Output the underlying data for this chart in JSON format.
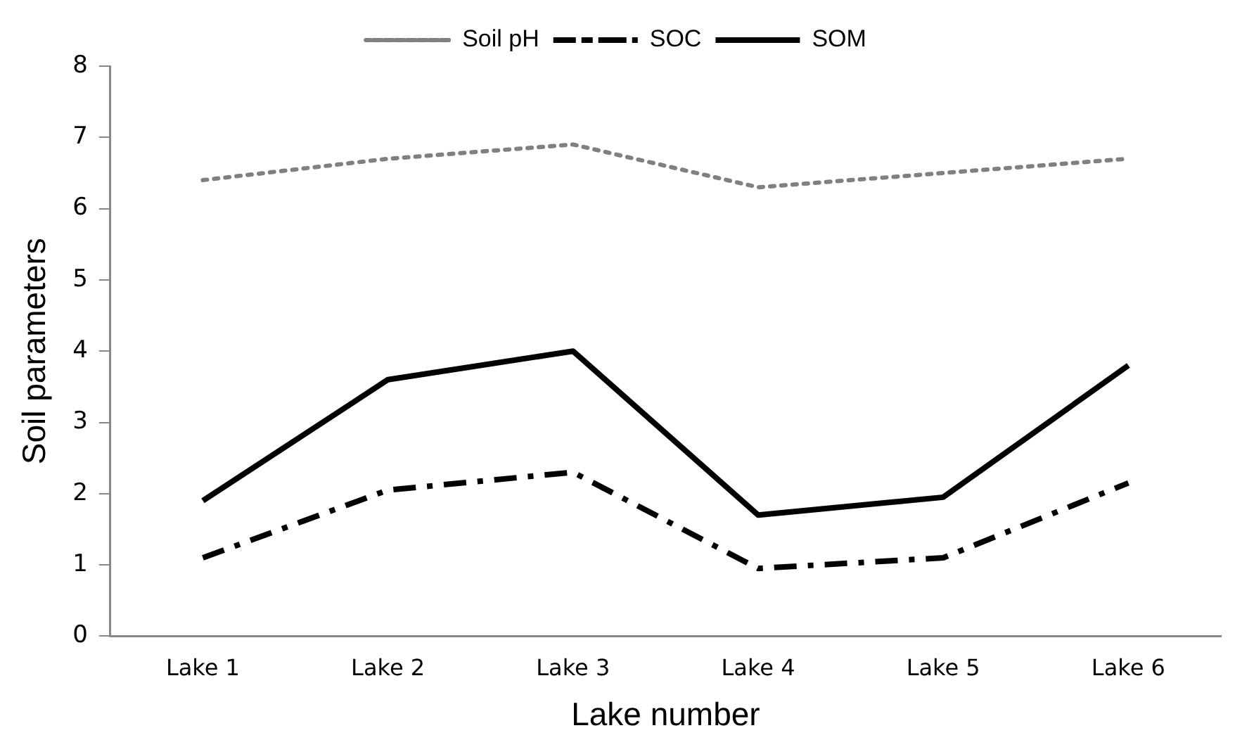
{
  "chart_data": {
    "type": "line",
    "xlabel": "Lake number",
    "ylabel": "Soil parameters",
    "categories": [
      "Lake 1",
      "Lake 2",
      "Lake 3",
      "Lake 4",
      "Lake 5",
      "Lake 6"
    ],
    "series": [
      {
        "name": "Soil pH",
        "color": "#808080",
        "line_style": "dotted",
        "values": [
          6.4,
          6.7,
          6.9,
          6.3,
          6.5,
          6.7
        ]
      },
      {
        "name": "SOC",
        "color": "#000000",
        "line_style": "dashed",
        "values": [
          1.1,
          2.05,
          2.3,
          0.95,
          1.1,
          2.15
        ]
      },
      {
        "name": "SOM",
        "color": "#000000",
        "line_style": "solid",
        "values": [
          1.9,
          3.6,
          4.0,
          1.7,
          1.95,
          3.8
        ]
      }
    ],
    "ylim": [
      0,
      8
    ],
    "yticks": [
      0,
      1,
      2,
      3,
      4,
      5,
      6,
      7,
      8
    ],
    "grid": false,
    "legend": "top",
    "marker": "none"
  }
}
